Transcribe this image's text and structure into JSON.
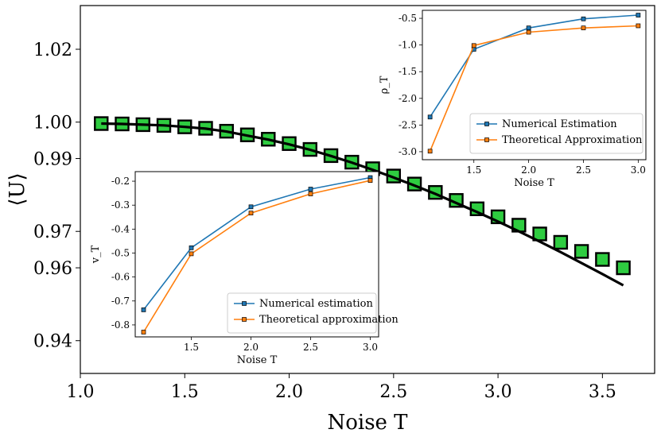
{
  "chart_data": [
    {
      "type": "scatter",
      "xlabel": "Noise T",
      "ylabel": "⟨U⟩",
      "xlim": [
        1.0,
        3.75
      ],
      "ylim": [
        0.931,
        1.032
      ],
      "x_ticks": [
        "1.0",
        "1.5",
        "2.0",
        "2.5",
        "3.0",
        "3.5"
      ],
      "y_ticks": [
        "0.94",
        "0.96",
        "0.97",
        "0.99",
        "1.00",
        "1.02"
      ],
      "series": [
        {
          "type": "scatter",
          "x": [
            1.1,
            1.2,
            1.3,
            1.4,
            1.5,
            1.6,
            1.7,
            1.8,
            1.9,
            2.0,
            2.1,
            2.2,
            2.3,
            2.4,
            2.5,
            2.6,
            2.7,
            2.8,
            2.9,
            3.0,
            3.1,
            3.2,
            3.3,
            3.4,
            3.5,
            3.6
          ],
          "y": [
            0.9996,
            0.9995,
            0.9993,
            0.9991,
            0.9987,
            0.9983,
            0.9975,
            0.9965,
            0.9953,
            0.9941,
            0.9925,
            0.9908,
            0.989,
            0.9872,
            0.9852,
            0.983,
            0.9807,
            0.9785,
            0.9762,
            0.974,
            0.9717,
            0.9693,
            0.967,
            0.9645,
            0.9623,
            0.96
          ],
          "color": "#2ecc40"
        },
        {
          "type": "line",
          "x": [
            1.1,
            1.2,
            1.3,
            1.4,
            1.5,
            1.6,
            1.7,
            1.8,
            1.9,
            2.0,
            2.1,
            2.2,
            2.3,
            2.4,
            2.5,
            2.6,
            2.7,
            2.8,
            2.9,
            3.0,
            3.1,
            3.2,
            3.3,
            3.4,
            3.5,
            3.6
          ],
          "y": [
            0.9996,
            0.9995,
            0.9993,
            0.9991,
            0.9987,
            0.9982,
            0.9974,
            0.9963,
            0.9952,
            0.9939,
            0.9924,
            0.9907,
            0.9889,
            0.9869,
            0.9848,
            0.9826,
            0.9803,
            0.9778,
            0.9753,
            0.9727,
            0.97,
            0.9672,
            0.9643,
            0.9613,
            0.9583,
            0.9552
          ],
          "color": "#000000"
        }
      ]
    },
    {
      "type": "line",
      "xlabel": "Noise T",
      "ylabel": "ρ_T",
      "xlim": [
        1.03,
        3.07
      ],
      "ylim": [
        -3.15,
        -0.35
      ],
      "x_ticks": [
        "1.5",
        "2.0",
        "2.5",
        "3.0"
      ],
      "y_ticks": [
        "-0.5",
        "-1.0",
        "-1.5",
        "-2.0",
        "-2.5",
        "-3.0"
      ],
      "legend_position": "lower-right",
      "series": [
        {
          "name": "Numerical Estimation",
          "x": [
            1.1,
            1.5,
            2.0,
            2.5,
            3.0
          ],
          "y": [
            -2.35,
            -1.08,
            -0.68,
            -0.51,
            -0.44
          ],
          "color": "#1f77b4"
        },
        {
          "name": "Theoretical Approximation",
          "x": [
            1.1,
            1.5,
            2.0,
            2.5,
            3.0
          ],
          "y": [
            -2.99,
            -1.01,
            -0.76,
            -0.68,
            -0.64
          ],
          "color": "#ff7f0e"
        }
      ]
    },
    {
      "type": "line",
      "xlabel": "Noise T",
      "ylabel": "v_T",
      "xlim": [
        1.03,
        3.07
      ],
      "ylim": [
        -0.85,
        -0.16
      ],
      "x_ticks": [
        "1.5",
        "2.0",
        "2.5",
        "3.0"
      ],
      "y_ticks": [
        "-0.2",
        "-0.3",
        "-0.4",
        "-0.5",
        "-0.6",
        "-0.7",
        "-0.8"
      ],
      "legend_position": "lower-right",
      "series": [
        {
          "name": "Numerical estimation",
          "x": [
            1.1,
            1.5,
            2.0,
            2.5,
            3.0
          ],
          "y": [
            -0.737,
            -0.478,
            -0.307,
            -0.233,
            -0.185
          ],
          "color": "#1f77b4"
        },
        {
          "name": "Theoretical approximation",
          "x": [
            1.1,
            1.5,
            2.0,
            2.5,
            3.0
          ],
          "y": [
            -0.83,
            -0.503,
            -0.333,
            -0.253,
            -0.197
          ],
          "color": "#ff7f0e"
        }
      ]
    }
  ]
}
